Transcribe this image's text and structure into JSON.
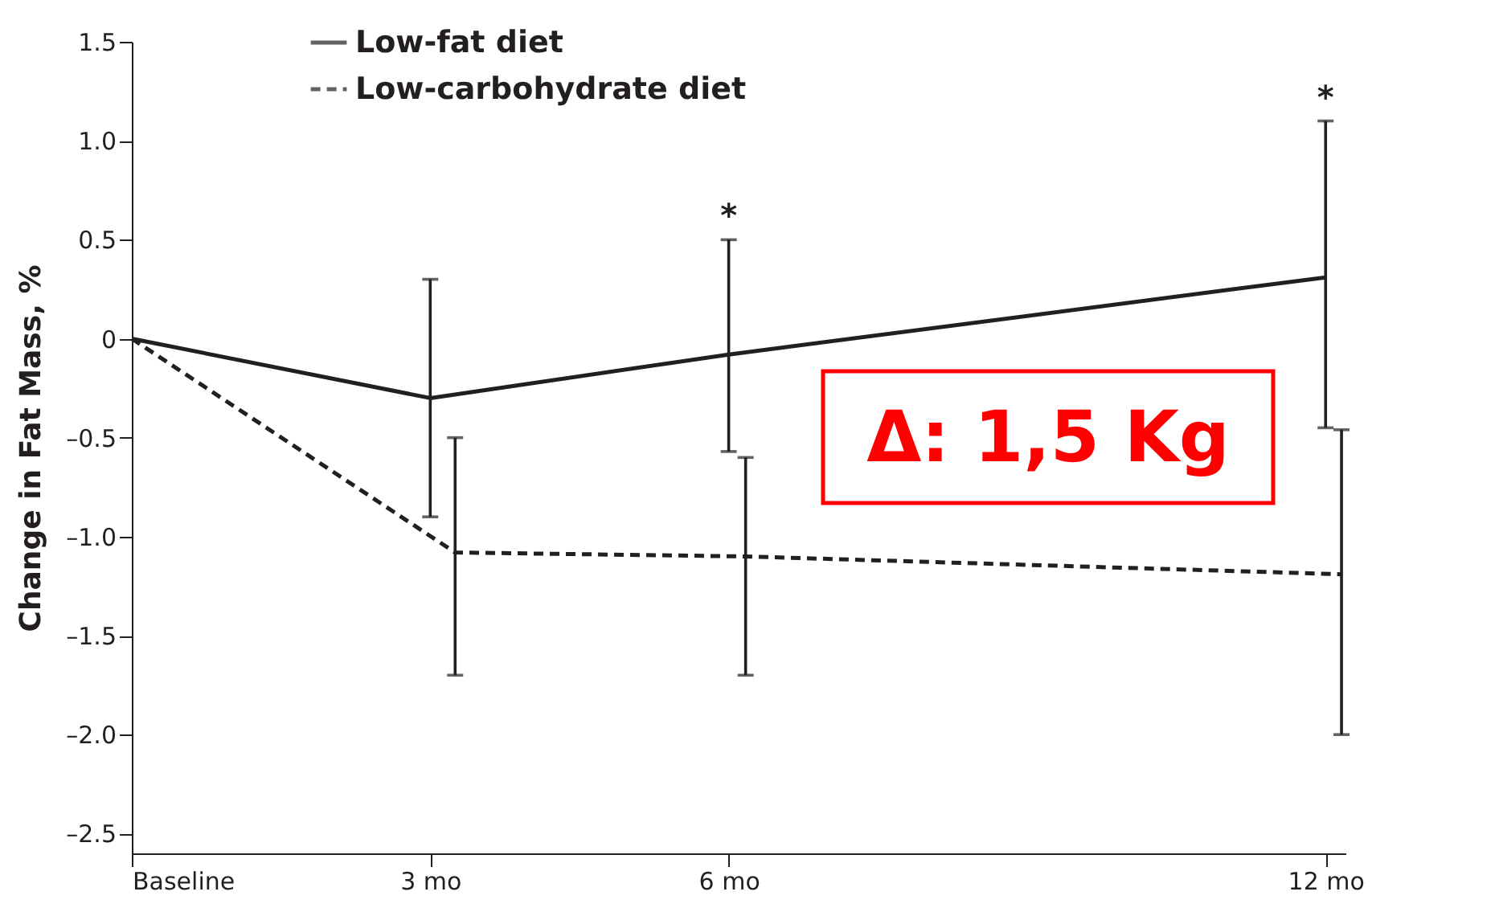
{
  "chart_data": {
    "type": "line",
    "ylabel": "Change in Fat Mass, %",
    "x": [
      0,
      3,
      6,
      12
    ],
    "series": [
      {
        "name": "Low-fat diet",
        "color": "#231f20",
        "line_style": "solid",
        "values": [
          0,
          -0.3,
          -0.08,
          0.31
        ],
        "errors": [
          null,
          [
            -0.9,
            0.3
          ],
          [
            -0.57,
            0.5
          ],
          [
            -0.45,
            1.1
          ]
        ]
      },
      {
        "name": "Low-carbohydrate diet",
        "color": "#231f20",
        "line_style": "dashed",
        "x": [
          0,
          3.25,
          6.17,
          12.16
        ],
        "values": [
          0,
          -1.08,
          -1.1,
          -1.19
        ],
        "errors": [
          null,
          [
            -1.7,
            -0.5
          ],
          [
            -1.7,
            -0.6
          ],
          [
            -2.0,
            -0.46
          ]
        ]
      }
    ],
    "xlim": [
      0,
      12.2
    ],
    "xticks": [
      {
        "value": 0,
        "label": "Baseline"
      },
      {
        "value": 3,
        "label": "3 mo"
      },
      {
        "value": 6,
        "label": "6 mo"
      },
      {
        "value": 12,
        "label": "12 mo"
      }
    ],
    "ylim": [
      -2.6,
      1.5
    ],
    "yticks": [
      {
        "value": 1.5,
        "label": "1.5"
      },
      {
        "value": 1.0,
        "label": "1.0"
      },
      {
        "value": 0.5,
        "label": "0.5"
      },
      0,
      {
        "value": -0.5,
        "label": "–0.5"
      },
      {
        "value": -1.0,
        "label": "–1.0"
      },
      {
        "value": -1.5,
        "label": "–1.5"
      },
      {
        "value": -2.0,
        "label": "–2.0"
      },
      {
        "value": -2.5,
        "label": "–2.5"
      }
    ],
    "annotations": [
      {
        "text": "*",
        "x": 6,
        "y": 0.5
      },
      {
        "text": "*",
        "x": 12,
        "y": 1.1
      },
      "Δ: 1,5 Kg"
    ],
    "grid": false,
    "legend": "top left",
    "marker": "none"
  }
}
